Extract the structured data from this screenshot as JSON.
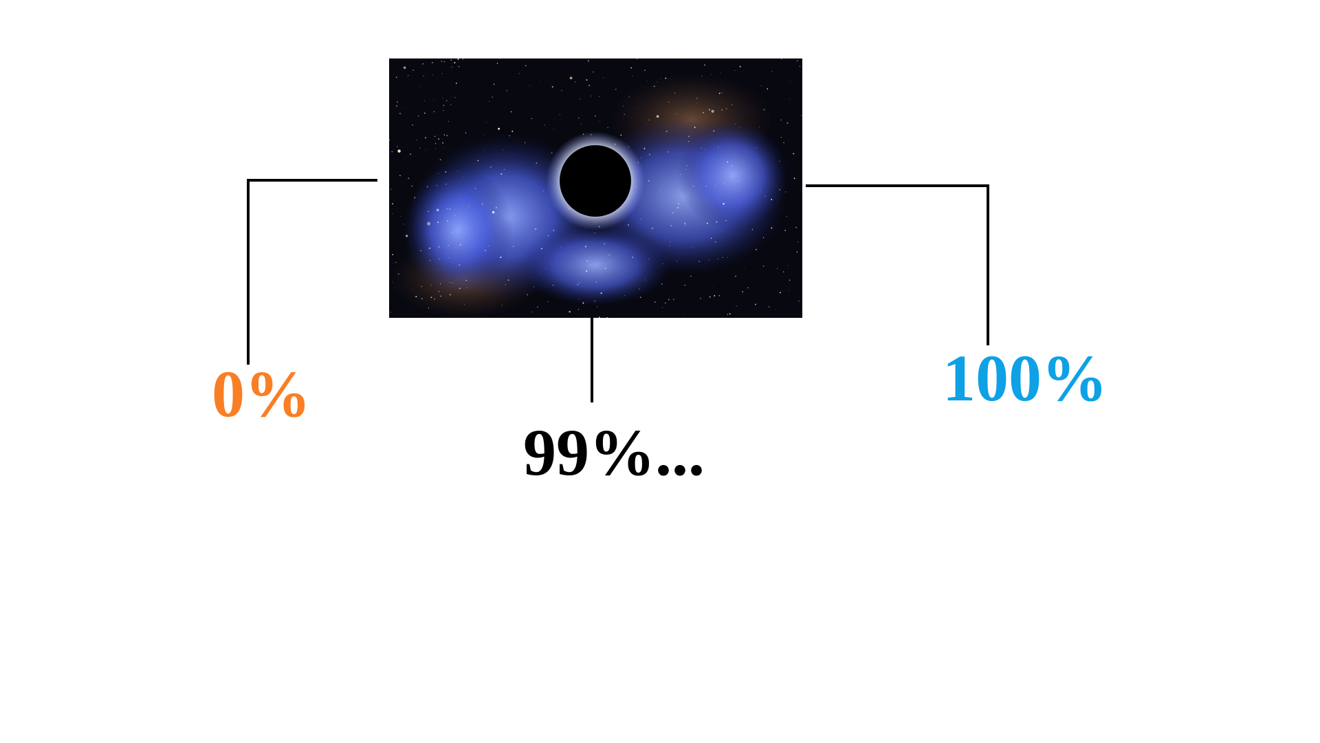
{
  "picture": {
    "subject": "black-hole-in-blue-nebula-starfield"
  },
  "labels": {
    "left": {
      "text": "0%",
      "color": "#fa7e23"
    },
    "middle": {
      "text": "99%...",
      "color": "#000000"
    },
    "right": {
      "text": "100%",
      "color": "#0ea1e6"
    }
  },
  "connector_color": "#000000"
}
